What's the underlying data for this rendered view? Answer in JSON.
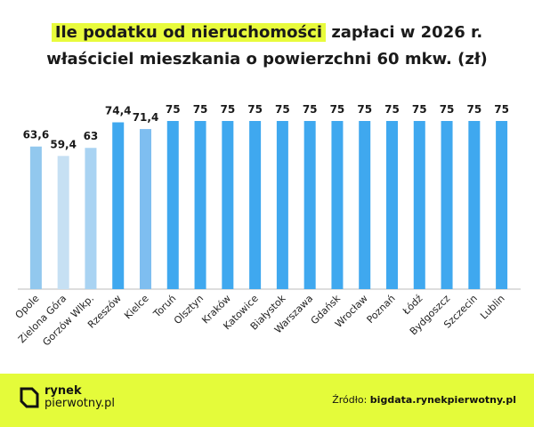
{
  "chart_data": {
    "type": "bar",
    "title_highlight": "Ile podatku od nieruchomości",
    "title_rest": "zapłaci w 2026 r.",
    "title_line2": "właściciel mieszkania o powierzchni 60 mkw. (zł)",
    "categories": [
      "Opole",
      "Zielona Góra",
      "Gorzów Wlkp.",
      "Rzeszów",
      "Kielce",
      "Toruń",
      "Olsztyn",
      "Kraków",
      "Katowice",
      "Białystok",
      "Warszawa",
      "Gdańsk",
      "Wrocław",
      "Poznań",
      "Łódź",
      "Bydgoszcz",
      "Szczecin",
      "Lublin"
    ],
    "values": [
      63.6,
      59.4,
      63,
      74.4,
      71.4,
      75,
      75,
      75,
      75,
      75,
      75,
      75,
      75,
      75,
      75,
      75,
      75,
      75
    ],
    "value_labels": [
      "63,6",
      "59,4",
      "63",
      "74,4",
      "71,4",
      "75",
      "75",
      "75",
      "75",
      "75",
      "75",
      "75",
      "75",
      "75",
      "75",
      "75",
      "75",
      "75"
    ],
    "colors": [
      "#92c8ee",
      "#c6e0f3",
      "#a9d3f2",
      "#3fa8ef",
      "#7ebef0",
      "#3fa8ef",
      "#3fa8ef",
      "#3fa8ef",
      "#3fa8ef",
      "#3fa8ef",
      "#3fa8ef",
      "#3fa8ef",
      "#3fa8ef",
      "#3fa8ef",
      "#3fa8ef",
      "#3fa8ef",
      "#3fa8ef",
      "#3fa8ef"
    ],
    "ylim": [
      0,
      75
    ]
  },
  "footer": {
    "logo_line1": "rynek",
    "logo_line2": "pierwotny.pl",
    "source_label": "Źródło:",
    "source_value": "bigdata.rynekpierwotny.pl"
  }
}
